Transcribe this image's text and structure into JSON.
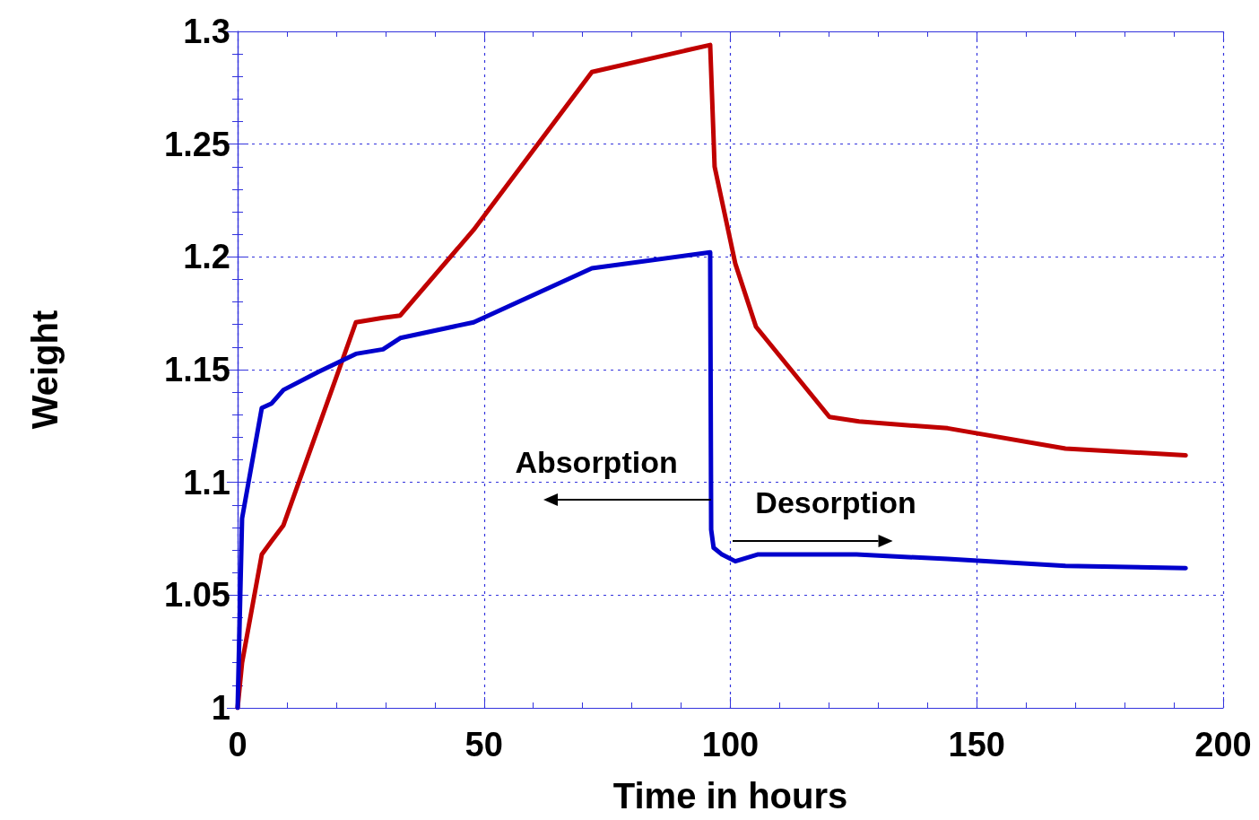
{
  "chart_data": {
    "type": "line",
    "xlabel": "Time in hours",
    "ylabel": "Weight",
    "xlim": [
      0,
      200
    ],
    "xticks": [
      0,
      50,
      100,
      150,
      200
    ],
    "ylim": [
      1,
      1.3
    ],
    "yticks": [
      1,
      1.05,
      1.1,
      1.15,
      1.2,
      1.25,
      1.3
    ],
    "grid": true,
    "marker": "none",
    "line_style": "solid",
    "annotations": [
      "Absorption",
      "Desorption"
    ],
    "series": [
      {
        "color": "#c00000",
        "x": [
          0,
          0.9,
          4.9,
          6.9,
          9.3,
          24,
          29.5,
          33,
          47.9,
          71.9,
          95.9,
          96.5,
          96.8,
          101,
          105.2,
          120.1,
          126.1,
          144.1,
          168,
          192.4
        ],
        "values": [
          1,
          1.02,
          1.068,
          1.074,
          1.081,
          1.171,
          1.173,
          1.174,
          1.212,
          1.282,
          1.294,
          1.258,
          1.24,
          1.197,
          1.169,
          1.129,
          1.127,
          1.124,
          1.115,
          1.112
        ]
      },
      {
        "color": "#0000cc",
        "x": [
          0,
          0.9,
          4.9,
          6.9,
          9.3,
          16.4,
          24,
          29.5,
          33,
          47.9,
          71.9,
          95.9,
          96.1,
          96.6,
          98.3,
          101,
          105.5,
          125.6,
          144.1,
          168,
          192.4
        ],
        "values": [
          1,
          1.084,
          1.133,
          1.135,
          1.141,
          1.149,
          1.157,
          1.159,
          1.164,
          1.171,
          1.195,
          1.202,
          1.079,
          1.071,
          1.068,
          1.065,
          1.068,
          1.068,
          1.066,
          1.063,
          1.062
        ]
      }
    ]
  }
}
